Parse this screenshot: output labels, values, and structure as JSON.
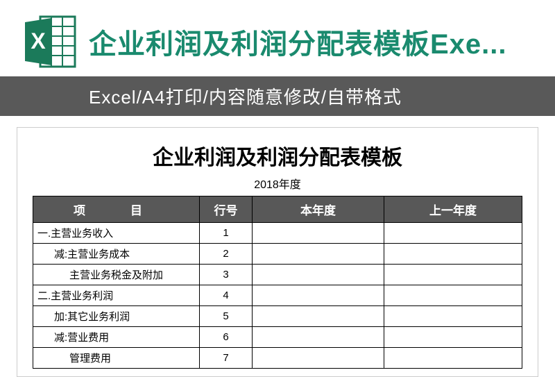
{
  "header": {
    "title": "企业利润及利润分配表模板Exe...",
    "subtitle": "Excel/A4打印/内容随意修改/自带格式"
  },
  "document": {
    "title": "企业利润及利润分配表模板",
    "year": "2018年度",
    "columns": {
      "item": "项　目",
      "rownum": "行号",
      "current": "本年度",
      "previous": "上一年度"
    },
    "rows": [
      {
        "label": "一.主营业务收入",
        "num": "1",
        "indent": 0
      },
      {
        "label": "减:主营业务成本",
        "num": "2",
        "indent": 1
      },
      {
        "label": "主营业务税金及附加",
        "num": "3",
        "indent": 2
      },
      {
        "label": "二.主营业务利润",
        "num": "4",
        "indent": 0
      },
      {
        "label": "加:其它业务利润",
        "num": "5",
        "indent": 1
      },
      {
        "label": "减:营业费用",
        "num": "6",
        "indent": 1
      },
      {
        "label": "管理费用",
        "num": "7",
        "indent": 2
      }
    ]
  },
  "colors": {
    "brand": "#1a8a6e",
    "subtitle_bg": "#595959",
    "table_header_bg": "#585858",
    "border": "#000000"
  }
}
